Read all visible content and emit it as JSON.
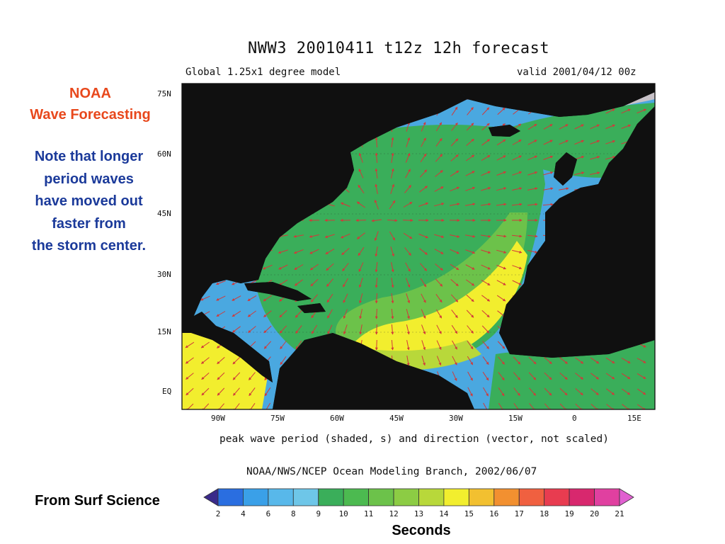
{
  "sidebar": {
    "title": "NOAA",
    "subtitle": "Wave Forecasting",
    "note_lines": [
      "Note that longer",
      "period waves",
      "have moved out",
      "faster from",
      "the storm center."
    ],
    "source": "From Surf Science"
  },
  "map": {
    "title": "NWW3 20010411 t12z  12h forecast",
    "model": "Global 1.25x1 degree model",
    "valid": "valid 2001/04/12 00z",
    "caption": "peak wave period (shaded, s) and direction (vector, not scaled)",
    "credit": "NOAA/NWS/NCEP Ocean Modeling Branch, 2002/06/07",
    "lat_labels": [
      "75N",
      "60N",
      "45N",
      "30N",
      "15N",
      "EQ"
    ],
    "lon_labels": [
      "90W",
      "75W",
      "60W",
      "45W",
      "30W",
      "15W",
      "0",
      "15E"
    ],
    "colors": {
      "land": "#101010",
      "ice": "#c8c2c8",
      "period_10": "#4aa8e0",
      "period_12": "#3aae5a",
      "period_13": "#6cc24a",
      "period_14": "#b8d83a",
      "period_15": "#f2ee2e",
      "arrow": "#d03a3a"
    }
  },
  "colorbar": {
    "ticks": [
      "2",
      "4",
      "6",
      "8",
      "9",
      "10",
      "11",
      "12",
      "13",
      "14",
      "15",
      "16",
      "17",
      "18",
      "19",
      "20",
      "21"
    ],
    "colors": [
      "#3a2a8a",
      "#2a6ee0",
      "#3aa0e8",
      "#58b8ea",
      "#6ec6e8",
      "#3aae5a",
      "#4cba50",
      "#6cc24a",
      "#8ccc44",
      "#b8d83a",
      "#f2ee2e",
      "#f2c030",
      "#f29030",
      "#f06040",
      "#e83c50",
      "#d8286e",
      "#e040a0",
      "#e060d0"
    ],
    "unit": "Seconds"
  }
}
